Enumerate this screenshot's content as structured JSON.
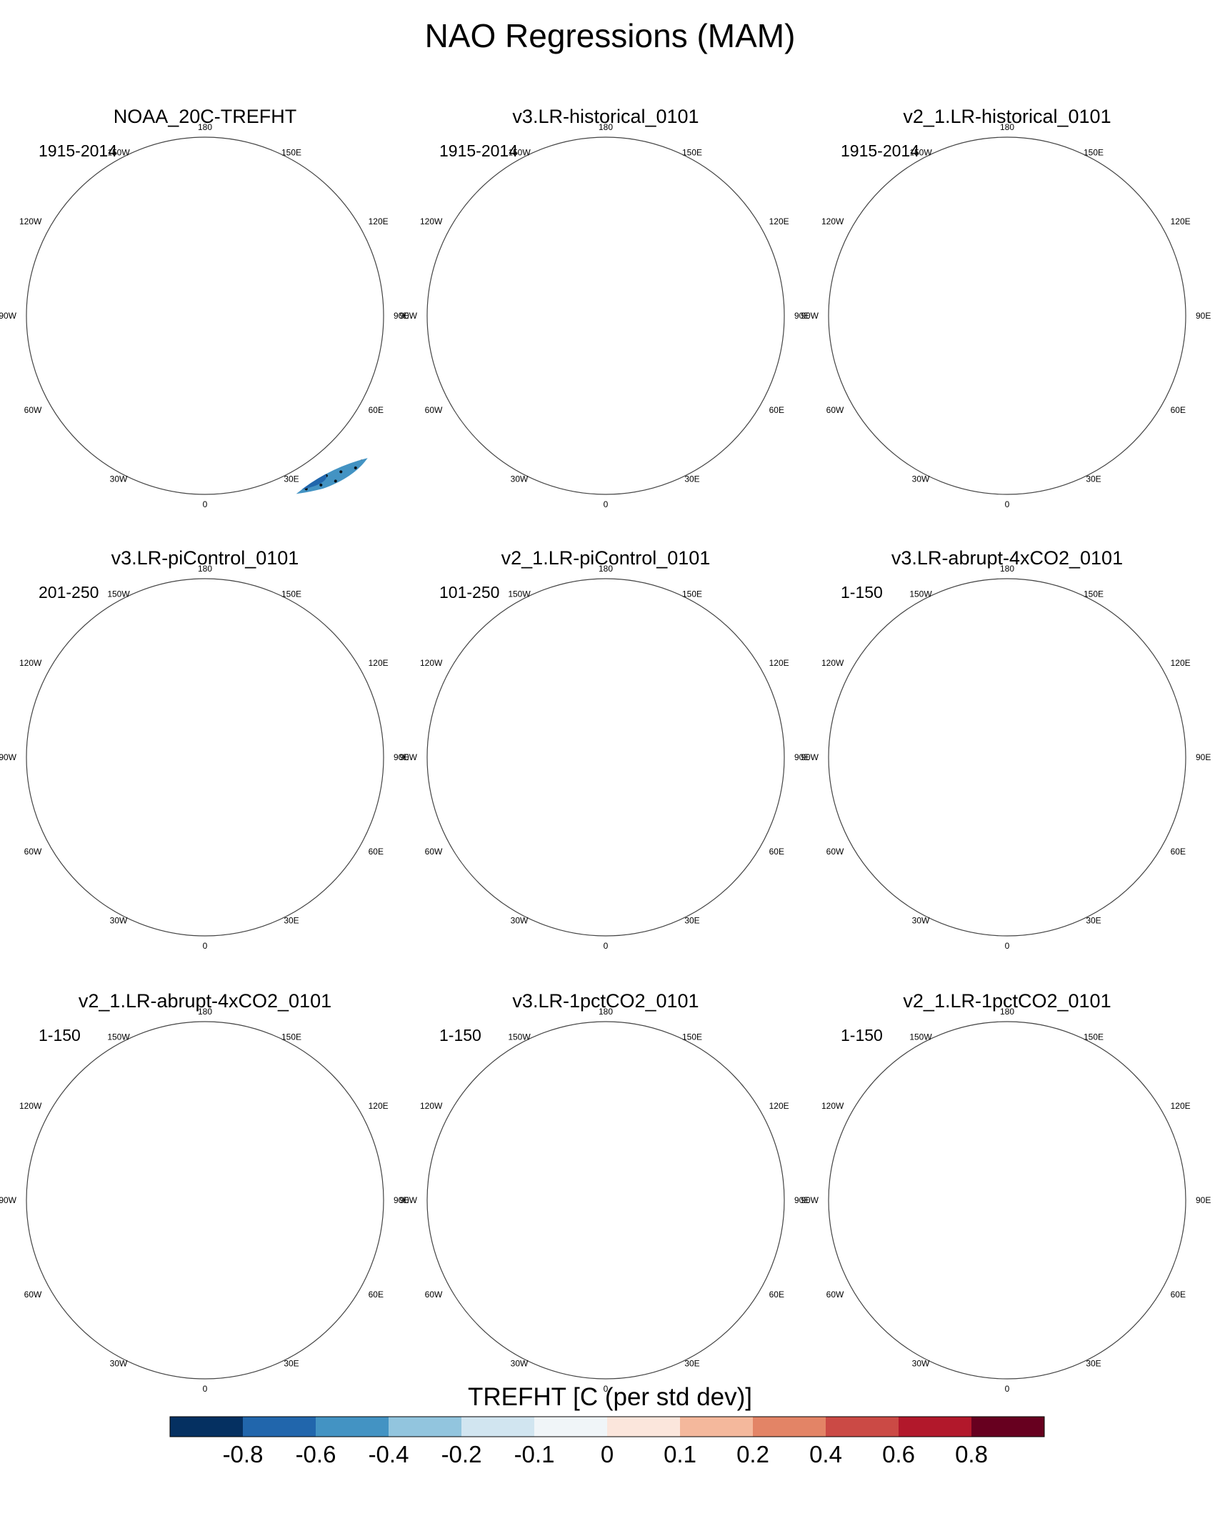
{
  "figure": {
    "title": "NAO Regressions (MAM)"
  },
  "longitude_labels": [
    "180",
    "150W",
    "150E",
    "120W",
    "120E",
    "90W",
    "90E",
    "60W",
    "60E",
    "30W",
    "30E",
    "0"
  ],
  "panels": [
    {
      "title": "NOAA_20C-TREFHT",
      "period": "1915-2014",
      "pattern": "noaa"
    },
    {
      "title": "v3.LR-historical_0101",
      "period": "1915-2014",
      "pattern": "hist3"
    },
    {
      "title": "v2_1.LR-historical_0101",
      "period": "1915-2014",
      "pattern": "hist2"
    },
    {
      "title": "v3.LR-piControl_0101",
      "period": "201-250",
      "pattern": "pic3"
    },
    {
      "title": "v2_1.LR-piControl_0101",
      "period": "101-250",
      "pattern": "pic2"
    },
    {
      "title": "v3.LR-abrupt-4xCO2_0101",
      "period": "1-150",
      "pattern": "ab3"
    },
    {
      "title": "v2_1.LR-abrupt-4xCO2_0101",
      "period": "1-150",
      "pattern": "ab2"
    },
    {
      "title": "v3.LR-1pctCO2_0101",
      "period": "1-150",
      "pattern": "pct3"
    },
    {
      "title": "v2_1.LR-1pctCO2_0101",
      "period": "1-150",
      "pattern": "pct2"
    }
  ],
  "colorbar": {
    "title": "TREFHT [C (per std dev)]",
    "tick_labels": [
      "-0.8",
      "-0.6",
      "-0.4",
      "-0.2",
      "-0.1",
      "0",
      "0.1",
      "0.2",
      "0.4",
      "0.6",
      "0.8"
    ],
    "colors": [
      "#053061",
      "#2166ac",
      "#4393c3",
      "#92c5de",
      "#d1e5f0",
      "#f0f5f8",
      "#fbe6dc",
      "#f4b89c",
      "#e38466",
      "#cb4a45",
      "#b2182b",
      "#67001f"
    ]
  }
}
